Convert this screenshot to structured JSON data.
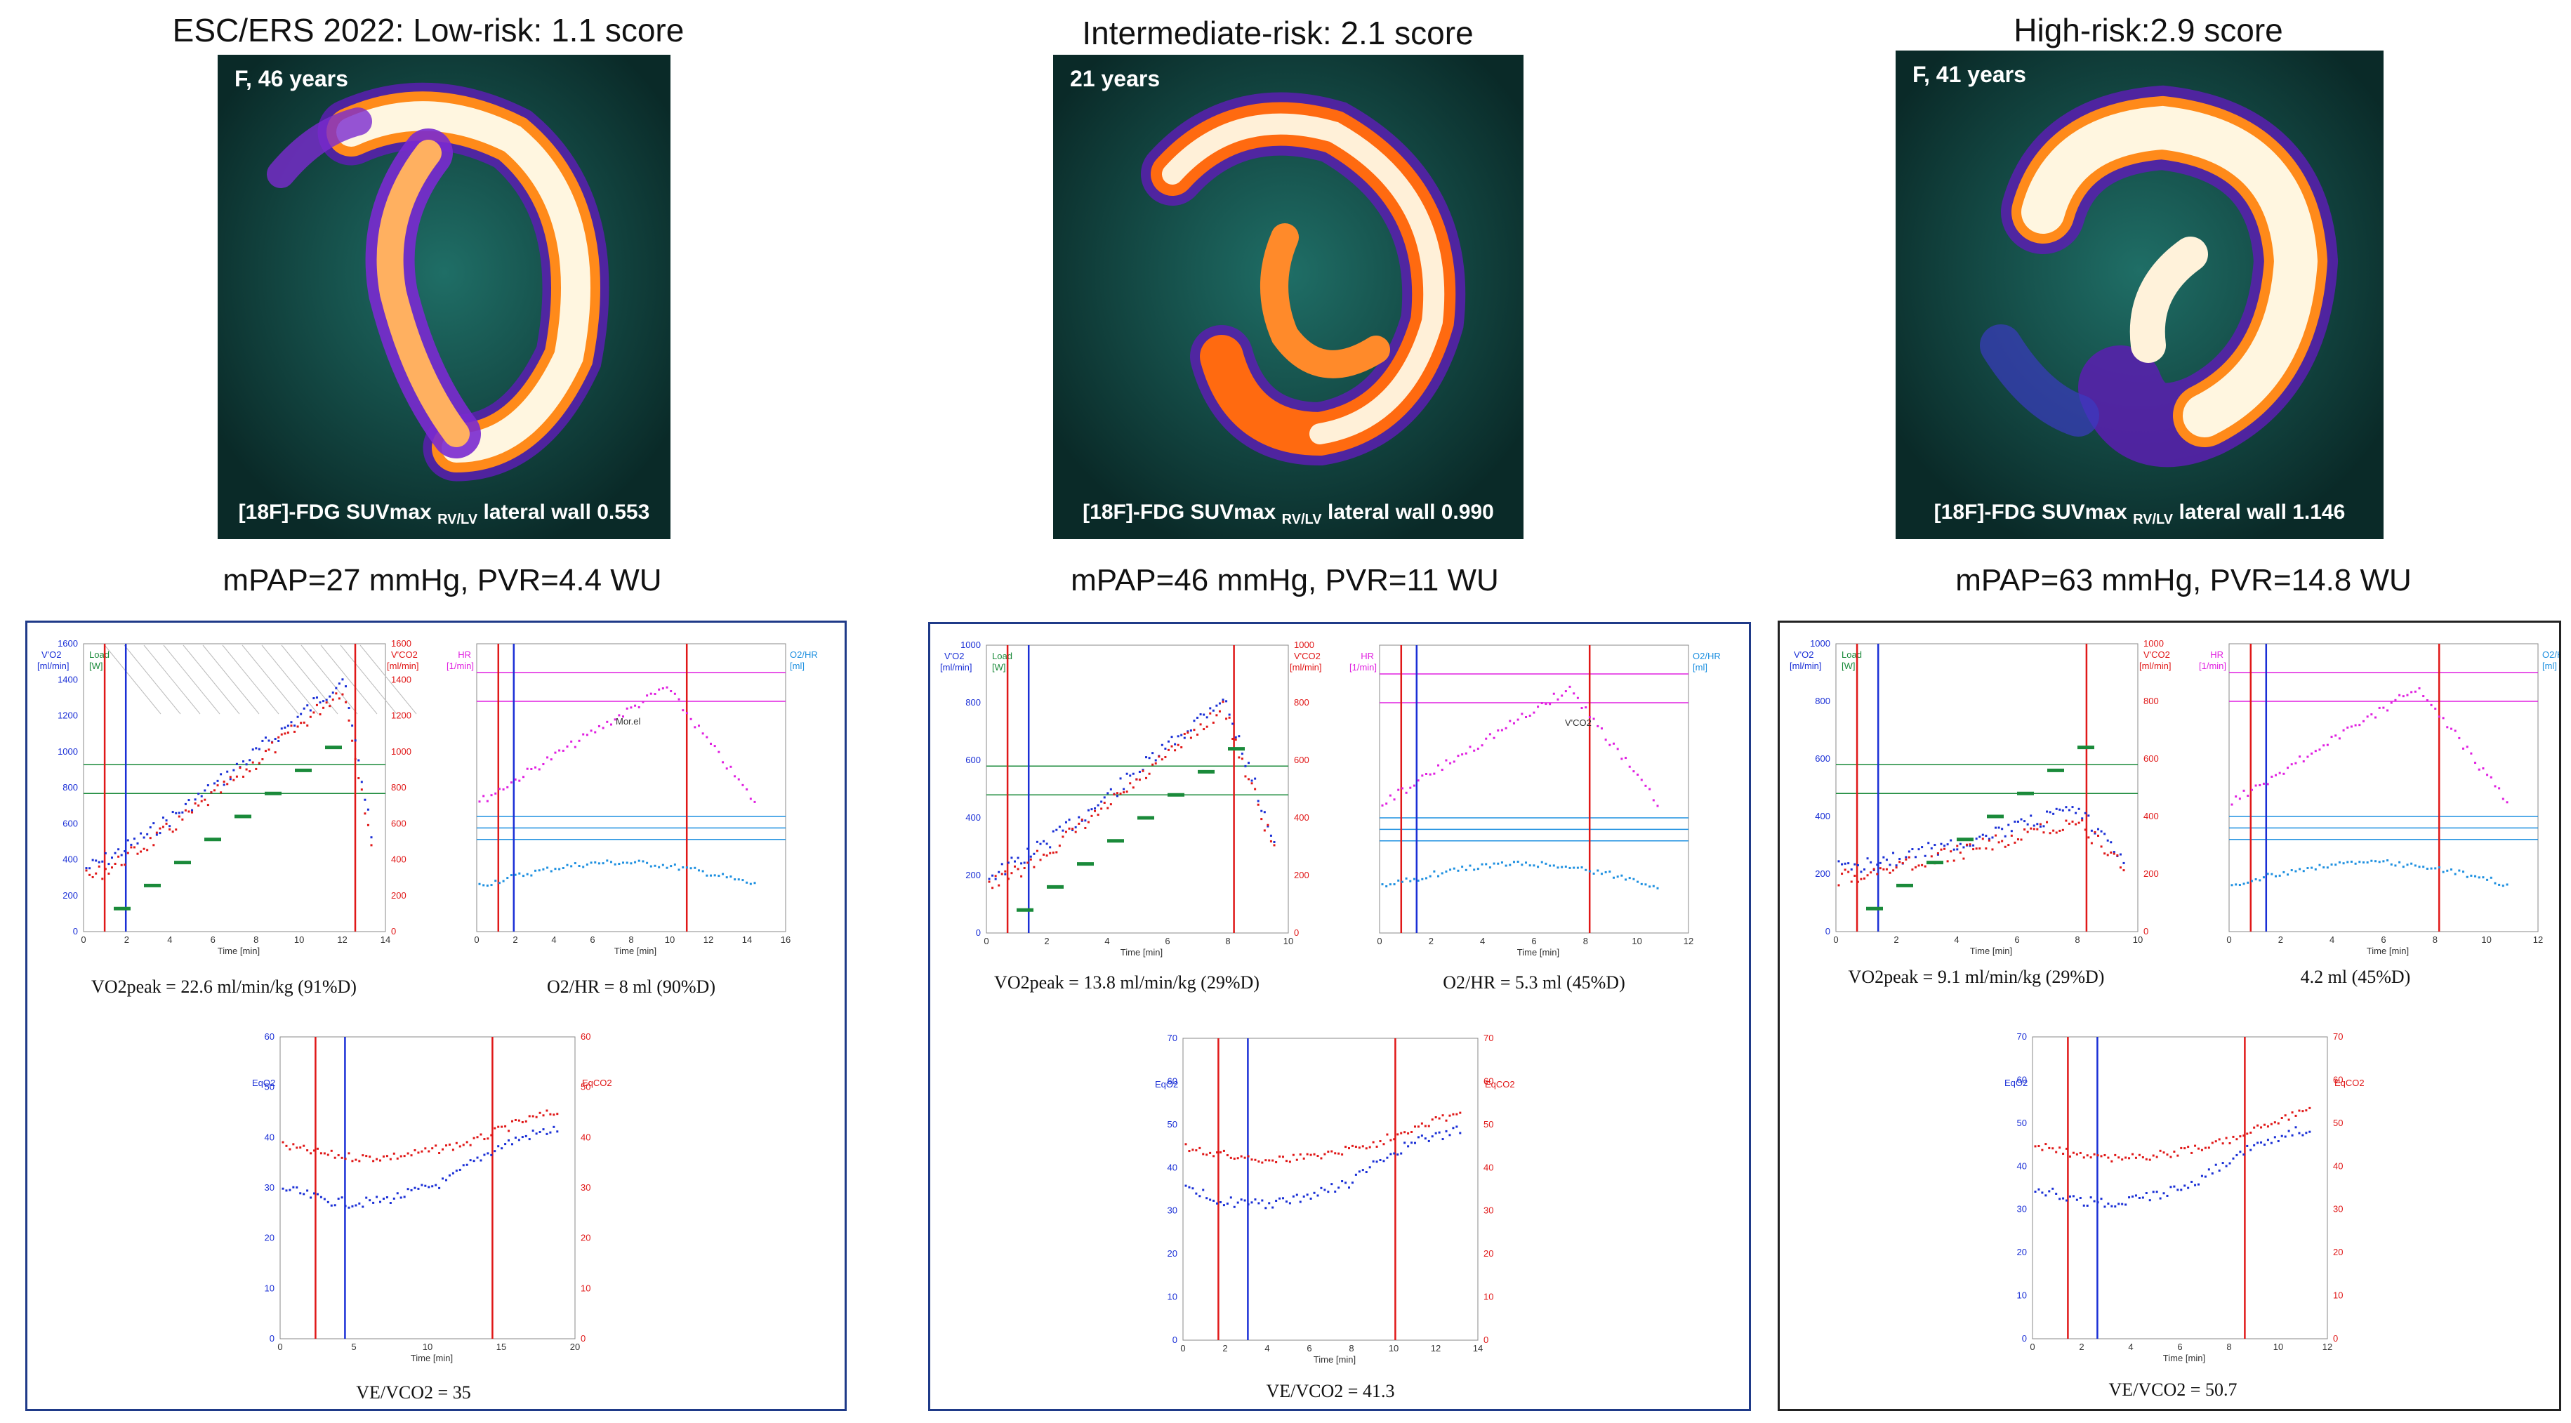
{
  "columns": [
    {
      "title": "ESC/ERS 2022: Low-risk: 1.1 score",
      "pet_label": "F, 46 years",
      "pet_caption_pre": "[18F]-FDG SUVmax",
      "pet_caption_sub": "RV/LV",
      "pet_caption_post": "lateral wall 0.553",
      "hemodynamics": "mPAP=27 mmHg, PVR=4.4 WU",
      "vo2_caption": "VO2peak = 22.6 ml/min/kg (91%D)",
      "o2hr_caption": "O2/HR = 8 ml (90%D)",
      "vevco2_caption": "VE/VCO2 = 35"
    },
    {
      "title": "Intermediate-risk: 2.1 score",
      "pet_label": "21 years",
      "pet_caption_pre": "[18F]-FDG SUVmax",
      "pet_caption_sub": "RV/LV",
      "pet_caption_post": "lateral wall 0.990",
      "hemodynamics": "mPAP=46 mmHg, PVR=11 WU",
      "vo2_caption": "VO2peak = 13.8 ml/min/kg (29%D)",
      "o2hr_caption": "O2/HR = 5.3 ml (45%D)",
      "vevco2_caption": "VE/VCO2 = 41.3"
    },
    {
      "title": "High-risk:2.9 score",
      "pet_label": "F, 41 years",
      "pet_caption_pre": "[18F]-FDG SUVmax",
      "pet_caption_sub": "RV/LV",
      "pet_caption_post": "lateral wall 1.146",
      "hemodynamics": "mPAP=63 mmHg, PVR=14.8 WU",
      "vo2_caption": "VO2peak = 9.1 ml/min/kg (29%D)",
      "o2hr_caption": "4.2 ml (45%D)",
      "vevco2_caption": "VE/VCO2 = 50.7"
    }
  ],
  "axis_labels": {
    "vo2": "V'O2",
    "vo2_unit": "[ml/min]",
    "load": "Load",
    "load_unit": "[W]",
    "vco2": "V'CO2",
    "vco2_unit": "[ml/min]",
    "hr": "HR",
    "hr_unit": "[1/min]",
    "o2hr": "O2/HR",
    "o2hr_unit": "[ml]",
    "eqo2": "EqO2",
    "eqco2": "EqCO2",
    "time": "Time",
    "time_unit": "[min]",
    "vt1": "Mor.el",
    "vco2_marker": "V'CO2"
  },
  "colors": {
    "vo2": "#1a2fd6",
    "vco2": "#e01818",
    "load": "#1a8a3a",
    "hr": "#e020e0",
    "o2hr": "#1e90e0",
    "panel_border": "#1f3a88",
    "pet_background": "#0c2e2b"
  }
}
